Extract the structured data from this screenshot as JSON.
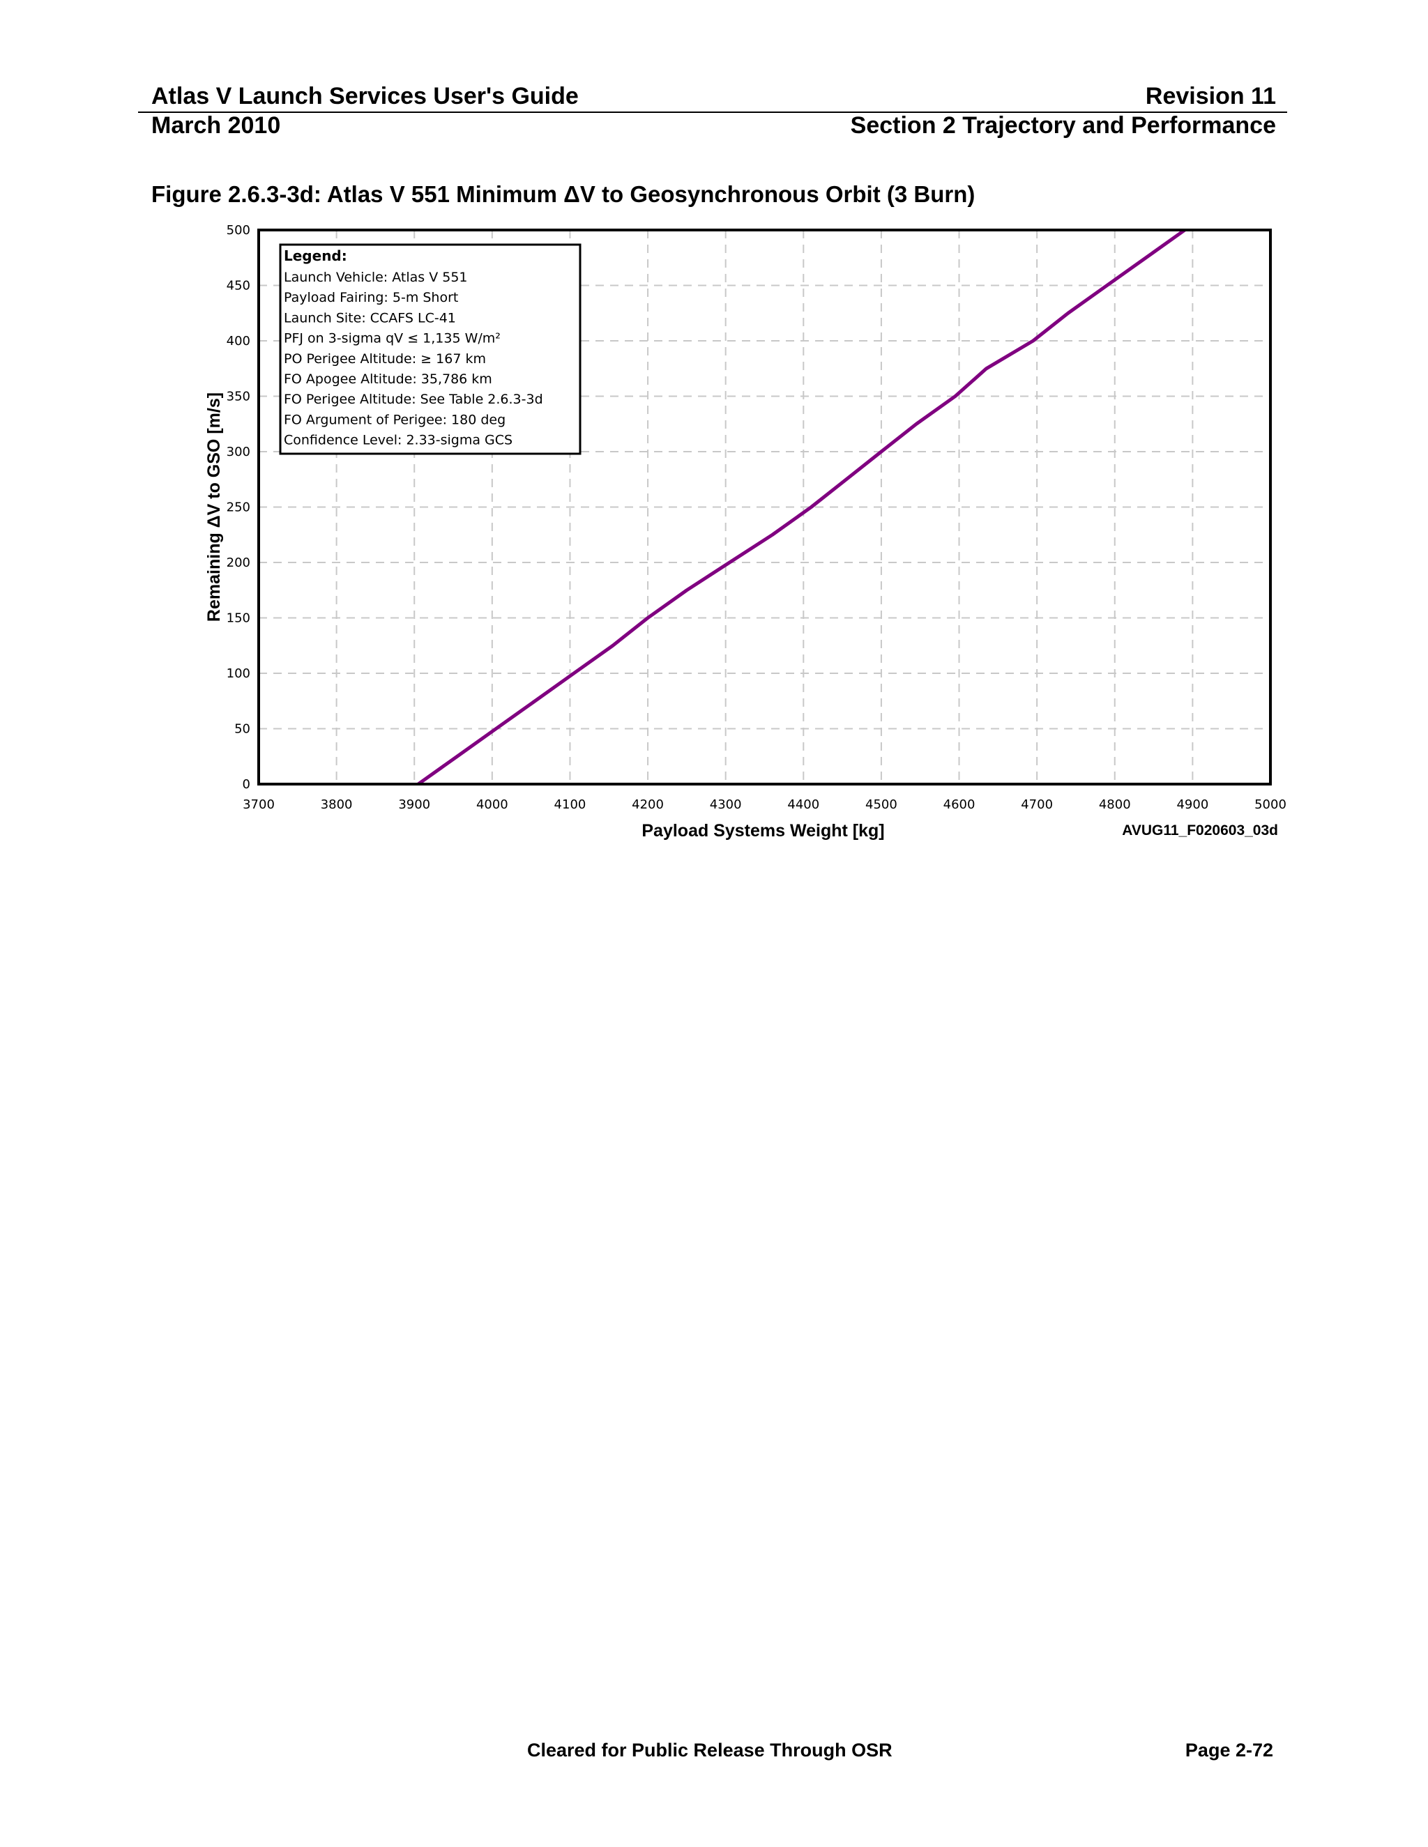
{
  "header": {
    "title": "Atlas V Launch Services User's Guide",
    "revision": "Revision 11",
    "date": "March 2010",
    "section": "Section 2 Trajectory and Performance"
  },
  "figure": {
    "title": "Figure 2.6.3-3d: Atlas V 551 Minimum ΔV to Geosynchronous Orbit (3 Burn)",
    "image_id": "AVUG11_F020603_03d"
  },
  "chart_data": {
    "type": "line",
    "xlabel": "Payload Systems Weight [kg]",
    "ylabel": "Remaining ΔV to GSO [m/s]",
    "xlim": [
      3700,
      5000
    ],
    "ylim": [
      0,
      500
    ],
    "x_ticks": [
      3700,
      3800,
      3900,
      4000,
      4100,
      4200,
      4300,
      4400,
      4500,
      4600,
      4700,
      4800,
      4900,
      5000
    ],
    "y_ticks": [
      0,
      50,
      100,
      150,
      200,
      250,
      300,
      350,
      400,
      450,
      500
    ],
    "grid": true,
    "line_color": "#800080",
    "legend": {
      "placement": "top-left",
      "title": "Legend:",
      "items": [
        "Launch Vehicle: Atlas V 551",
        "Payload Fairing: 5-m Short",
        "Launch Site: CCAFS LC-41",
        "PFJ on 3-sigma qV ≤ 1,135 W/m²",
        "PO Perigee Altitude: ≥ 167 km",
        "FO Apogee Altitude: 35,786 km",
        "FO Perigee Altitude: See Table 2.6.3-3d",
        "FO Argument of Perigee: 180 deg",
        "Confidence Level: 2.33-sigma GCS"
      ]
    },
    "series": [
      {
        "x": [
          3905,
          3955,
          4005,
          4055,
          4105,
          4155,
          4200,
          4250,
          4305,
          4360,
          4410,
          4455,
          4500,
          4545,
          4595,
          4635,
          4695,
          4740,
          4790,
          4840,
          4890
        ],
        "y": [
          0,
          25,
          50,
          75,
          100,
          125,
          150,
          175,
          200,
          225,
          250,
          275,
          300,
          325,
          350,
          375,
          400,
          425,
          450,
          475,
          500
        ]
      }
    ]
  },
  "footer": {
    "release": "Cleared for Public Release Through OSR",
    "page": "Page 2-72"
  }
}
